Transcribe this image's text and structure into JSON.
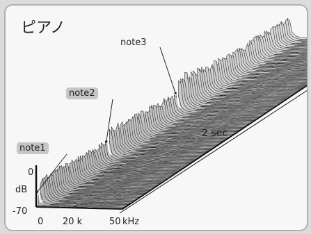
{
  "chart_data": {
    "type": "area",
    "title": "ピアノ",
    "notes": [
      {
        "label": "note1",
        "time": 0.0
      },
      {
        "label": "note2",
        "time": 0.55
      },
      {
        "label": "note3",
        "time": 1.1
      }
    ],
    "time_label": "2 sec",
    "time_range": [
      0,
      2
    ],
    "y_axis": {
      "unit": "dB",
      "top_label": "0",
      "bottom_label": "-70",
      "range": [
        -70,
        0
      ]
    },
    "x_axis": {
      "unit": "kHz",
      "ticks": [
        "0",
        "20 k",
        "50"
      ],
      "range": [
        0,
        50
      ]
    }
  }
}
